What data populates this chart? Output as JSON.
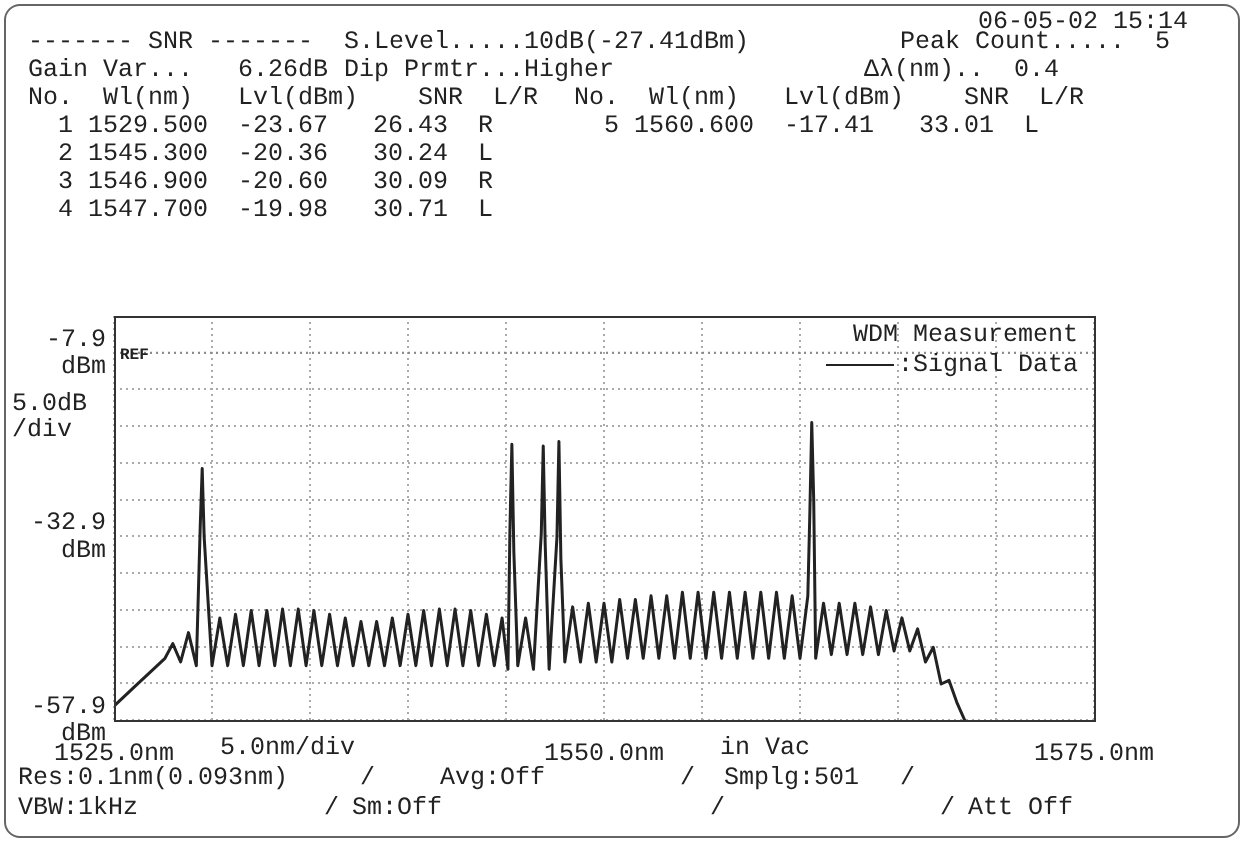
{
  "chart_data": {
    "type": "line",
    "xlim": [
      1525,
      1575
    ],
    "xticks": [
      {
        "value": 1525,
        "label": "1525.0nm"
      },
      {
        "value": 1530,
        "label": null
      },
      {
        "value": 1535,
        "label": null
      },
      {
        "value": 1540,
        "label": null
      },
      {
        "value": 1545,
        "label": null
      },
      {
        "value": 1550,
        "label": "1550.0nm"
      },
      {
        "value": 1555,
        "label": null
      },
      {
        "value": 1560,
        "label": null
      },
      {
        "value": 1565,
        "label": null
      },
      {
        "value": 1570,
        "label": null
      },
      {
        "value": 1575,
        "label": "1575.0nm"
      }
    ],
    "ylim": [
      -57.9,
      -2.9
    ],
    "yticks": [
      {
        "value": -57.9,
        "label": "-57.9 dBm"
      },
      {
        "value": -52.9,
        "label": null
      },
      {
        "value": -47.9,
        "label": null
      },
      {
        "value": -42.9,
        "label": null
      },
      {
        "value": -37.9,
        "label": null
      },
      {
        "value": -32.9,
        "label": "-32.9 dBm"
      },
      {
        "value": -27.9,
        "label": null
      },
      {
        "value": -22.9,
        "label": null
      },
      {
        "value": -17.9,
        "label": null
      },
      {
        "value": -12.9,
        "label": null
      },
      {
        "value": -7.9,
        "label": "-7.9 dBm"
      }
    ],
    "grid": true,
    "legend": "top right",
    "legend_title": "WDM Measurement",
    "ylabel": "5.0dB /div",
    "xlabel": "5.0nm/div",
    "marker": "none",
    "line_style": "solid",
    "ref_lines": [
      {
        "axis": "y",
        "value": -7.9,
        "label": "REF",
        "color": "#888888",
        "line_style": "dotted"
      }
    ],
    "series": [
      {
        "name": ":Signal Data",
        "color": "#222222",
        "x": [
          1525.0,
          1526.0,
          1527.0,
          1527.6,
          1528.0,
          1528.4,
          1528.8,
          1529.2,
          1529.4,
          1529.5,
          1529.6,
          1530.0,
          1530.4,
          1530.8,
          1531.2,
          1531.6,
          1532.0,
          1532.4,
          1532.8,
          1533.2,
          1533.6,
          1534.0,
          1534.4,
          1534.8,
          1535.2,
          1535.6,
          1536.0,
          1536.4,
          1536.8,
          1537.2,
          1537.6,
          1538.0,
          1538.4,
          1538.8,
          1539.2,
          1539.6,
          1540.0,
          1540.4,
          1540.8,
          1541.2,
          1541.6,
          1542.0,
          1542.4,
          1542.8,
          1543.2,
          1543.6,
          1544.0,
          1544.4,
          1544.8,
          1545.1,
          1545.2,
          1545.3,
          1545.4,
          1545.6,
          1546.0,
          1546.4,
          1546.8,
          1546.9,
          1547.0,
          1547.2,
          1547.6,
          1547.7,
          1547.8,
          1548.0,
          1548.4,
          1548.8,
          1549.2,
          1549.6,
          1550.0,
          1550.4,
          1550.8,
          1551.2,
          1551.6,
          1552.0,
          1552.4,
          1552.8,
          1553.2,
          1553.6,
          1554.0,
          1554.4,
          1554.8,
          1555.2,
          1555.6,
          1556.0,
          1556.4,
          1556.8,
          1557.2,
          1557.6,
          1558.0,
          1558.4,
          1558.8,
          1559.2,
          1559.6,
          1560.0,
          1560.4,
          1560.5,
          1560.6,
          1560.7,
          1560.8,
          1561.2,
          1561.6,
          1562.0,
          1562.4,
          1562.8,
          1563.2,
          1563.6,
          1564.0,
          1564.4,
          1564.8,
          1565.2,
          1565.6,
          1566.0,
          1566.4,
          1566.8,
          1567.2,
          1567.6,
          1568.0,
          1568.4
        ],
        "values": [
          -56.0,
          -53.5,
          -51.0,
          -49.5,
          -47.5,
          -50.0,
          -46.0,
          -50.5,
          -31.5,
          -23.67,
          -33.0,
          -50.5,
          -44.0,
          -50.5,
          -43.5,
          -50.5,
          -43.0,
          -50.5,
          -43.0,
          -50.5,
          -42.8,
          -50.5,
          -42.8,
          -50.5,
          -43.0,
          -50.5,
          -43.5,
          -50.5,
          -44.0,
          -50.5,
          -44.5,
          -50.5,
          -44.5,
          -50.5,
          -44.0,
          -50.5,
          -43.5,
          -50.5,
          -43.0,
          -50.5,
          -42.8,
          -50.5,
          -42.8,
          -50.5,
          -43.0,
          -50.5,
          -43.5,
          -50.5,
          -44.0,
          -51.0,
          -32.0,
          -20.36,
          -35.0,
          -50.5,
          -44.0,
          -51.0,
          -32.5,
          -20.6,
          -34.0,
          -51.0,
          -33.0,
          -19.98,
          -36.0,
          -50.0,
          -42.5,
          -50.0,
          -42.0,
          -50.0,
          -42.0,
          -50.0,
          -41.5,
          -49.5,
          -41.5,
          -49.5,
          -41.0,
          -49.5,
          -41.0,
          -49.5,
          -40.5,
          -49.5,
          -40.5,
          -49.5,
          -40.5,
          -49.5,
          -40.5,
          -49.5,
          -40.5,
          -49.5,
          -40.5,
          -49.5,
          -40.5,
          -49.5,
          -41.0,
          -49.5,
          -41.0,
          -30.0,
          -17.41,
          -28.0,
          -49.5,
          -42.0,
          -49.0,
          -42.0,
          -49.0,
          -42.0,
          -49.0,
          -42.5,
          -49.0,
          -43.0,
          -48.5,
          -44.0,
          -48.5,
          -45.5,
          -50.0,
          -48.0,
          -53.0,
          -52.5,
          -55.5,
          -57.9
        ]
      }
    ],
    "annotations": [
      "06-05-02 15:14",
      "------- SNR -------",
      "S.Level.....10dB(-27.41dBm)",
      "Peak Count.....  5",
      "Gain Var...   6.26dB",
      "Dip Prmtr...Higher",
      "Δλ(nm)..  0.4",
      "No.  Wl(nm)   Lvl(dBm)    SNR  L/R",
      "No.  Wl(nm)   Lvl(dBm)    SNR  L/R",
      "  1 1529.500  -23.67   26.43  R",
      "  5 1560.600  -17.41   33.01  L",
      "  2 1545.300  -20.36   30.24  L",
      "  3 1546.900  -20.60   30.09  R",
      "  4 1547.700  -19.98   30.71  L",
      "in Vac",
      "Res:0.1nm(0.093nm)",
      "/",
      "Avg:Off",
      "/",
      "Smplg:501",
      "/",
      "VBW:1kHz",
      "/",
      "Sm:Off",
      "/",
      "/",
      "Att Off"
    ]
  }
}
